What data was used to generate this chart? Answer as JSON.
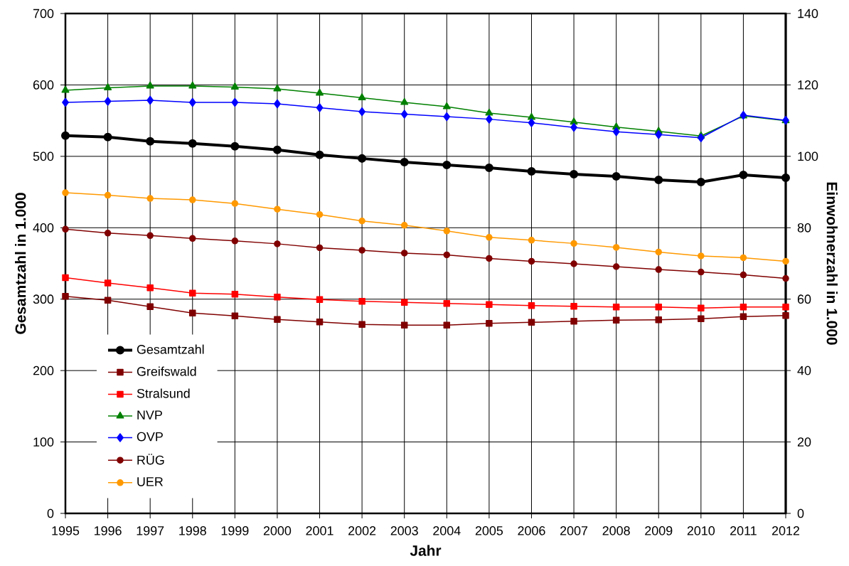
{
  "chart_data": {
    "type": "line",
    "xlabel": "Jahr",
    "ylabel": "Gesamtzahl in 1.000",
    "y2label": "Einwohnerzahl in 1.000",
    "x": [
      1995,
      1996,
      1997,
      1998,
      1999,
      2000,
      2001,
      2002,
      2003,
      2004,
      2005,
      2006,
      2007,
      2008,
      2009,
      2010,
      2011,
      2012
    ],
    "xlim": [
      1995,
      2012
    ],
    "xticks": [
      1995,
      1996,
      1997,
      1998,
      1999,
      2000,
      2001,
      2002,
      2003,
      2004,
      2005,
      2006,
      2007,
      2008,
      2009,
      2010,
      2011,
      2012
    ],
    "ylim": [
      0,
      700
    ],
    "yticks": [
      0,
      100,
      200,
      300,
      400,
      500,
      600,
      700
    ],
    "y2lim": [
      0,
      140
    ],
    "y2ticks": [
      0,
      20,
      40,
      60,
      80,
      100,
      120,
      140
    ],
    "grid": true,
    "legend": "bottom left",
    "line_style": "solid",
    "series": [
      {
        "name": "Gesamtzahl",
        "color": "#000000",
        "marker": "circle",
        "axis": "y",
        "values": [
          529,
          527,
          521,
          518,
          514,
          509,
          502,
          497,
          492,
          488,
          484,
          479,
          475,
          472,
          467,
          464,
          474,
          470
        ]
      },
      {
        "name": "Greifswald",
        "color": "#800000",
        "marker": "square",
        "axis": "y2",
        "values": [
          60.8,
          59.7,
          57.9,
          56.1,
          55.3,
          54.3,
          53.6,
          52.9,
          52.7,
          52.7,
          53.2,
          53.5,
          53.8,
          54.1,
          54.2,
          54.5,
          55.1,
          55.4
        ]
      },
      {
        "name": "Stralsund",
        "color": "#ff0000",
        "marker": "square",
        "axis": "y2",
        "values": [
          66.0,
          64.5,
          63.2,
          61.7,
          61.4,
          60.6,
          59.9,
          59.4,
          59.1,
          58.8,
          58.5,
          58.2,
          58.0,
          57.8,
          57.8,
          57.5,
          57.8,
          57.8
        ]
      },
      {
        "name": "NVP",
        "color": "#008000",
        "marker": "triangle",
        "axis": "y2",
        "values": [
          118.5,
          119.2,
          119.7,
          119.7,
          119.4,
          118.9,
          117.7,
          116.4,
          115.1,
          113.9,
          112.1,
          110.9,
          109.6,
          108.2,
          107.0,
          105.7,
          111.3,
          110.0
        ]
      },
      {
        "name": "OVP",
        "color": "#0000ff",
        "marker": "diamond",
        "axis": "y2",
        "values": [
          115.1,
          115.4,
          115.7,
          115.1,
          115.1,
          114.7,
          113.6,
          112.5,
          111.8,
          111.1,
          110.4,
          109.4,
          108.1,
          106.9,
          106.1,
          105.2,
          111.5,
          110.1
        ]
      },
      {
        "name": "RÜG",
        "color": "#800000",
        "marker": "circle",
        "axis": "y2",
        "values": [
          79.6,
          78.5,
          77.8,
          77.0,
          76.3,
          75.5,
          74.4,
          73.7,
          72.9,
          72.4,
          71.4,
          70.6,
          69.9,
          69.1,
          68.3,
          67.6,
          66.8,
          65.8
        ]
      },
      {
        "name": "UER",
        "color": "#ff9900",
        "marker": "circle",
        "axis": "y2",
        "values": [
          89.8,
          89.1,
          88.2,
          87.8,
          86.8,
          85.2,
          83.7,
          81.9,
          80.7,
          79.1,
          77.3,
          76.5,
          75.6,
          74.5,
          73.2,
          72.1,
          71.6,
          70.6
        ]
      }
    ]
  }
}
